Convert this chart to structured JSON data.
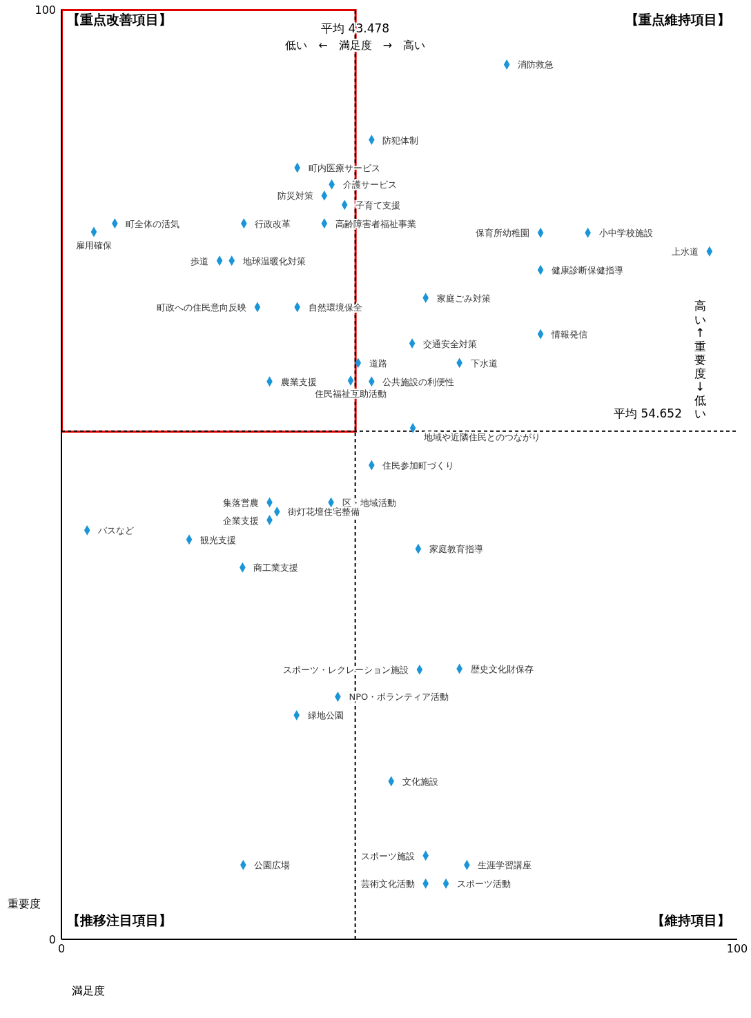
{
  "chart_data": {
    "type": "scatter",
    "xlabel": "満足度",
    "ylabel": "重要度",
    "x": [
      65.9,
      45.9,
      34.9,
      40.0,
      38.9,
      41.9,
      7.9,
      27.0,
      38.9,
      4.8,
      70.9,
      77.9,
      95.9,
      23.4,
      25.2,
      70.9,
      53.9,
      29.0,
      34.9,
      70.9,
      51.9,
      43.9,
      58.9,
      30.8,
      42.8,
      45.9,
      52.0,
      45.9,
      30.8,
      39.9,
      31.9,
      30.8,
      3.8,
      18.9,
      52.8,
      26.8,
      53.0,
      58.9,
      40.9,
      34.8,
      48.8,
      53.9,
      26.9,
      60.0,
      53.9,
      56.9
    ],
    "values": [
      94.1,
      86.0,
      83.0,
      81.2,
      80.0,
      79.0,
      77.0,
      77.0,
      77.0,
      76.1,
      76.0,
      76.0,
      74.0,
      73.0,
      73.0,
      72.0,
      69.0,
      68.0,
      68.0,
      65.1,
      64.1,
      62.0,
      62.0,
      60.0,
      60.1,
      60.0,
      55.0,
      51.0,
      47.0,
      47.0,
      46.0,
      45.1,
      44.0,
      43.0,
      42.0,
      40.0,
      29.0,
      29.1,
      26.1,
      24.1,
      17.0,
      9.0,
      8.0,
      8.0,
      6.0,
      6.0
    ],
    "color": "#1a96d8",
    "marker": "diamond",
    "xlim": [
      0,
      100
    ],
    "ylim": [
      0,
      100
    ],
    "xticks": [
      0,
      100
    ],
    "yticks": [
      0,
      100
    ],
    "ref_lines": [
      {
        "axis": "x",
        "value": 43.478,
        "label": "平均 43.478",
        "color": "#000000",
        "line_style": "dashed"
      },
      {
        "axis": "y",
        "value": 54.652,
        "label": "平均 54.652",
        "color": "#000000",
        "line_style": "dashed"
      }
    ],
    "annotations": [
      "【重点改善項目】",
      "【重点維持項目】",
      "【推移注目項目】",
      "【維持項目】",
      "低い　←　満足度　→　高い",
      "高い ↑ 重要度 ↓ 低い",
      {
        "text": "消防救急",
        "x": 65.9,
        "y": 94.1
      },
      {
        "text": "防犯体制",
        "x": 45.9,
        "y": 86.0
      },
      {
        "text": "町内医療サービス",
        "x": 34.9,
        "y": 83.0
      },
      {
        "text": "介護サービス",
        "x": 40.0,
        "y": 81.2
      },
      {
        "text": "防災対策",
        "x": 38.9,
        "y": 80.0
      },
      {
        "text": "子育て支援",
        "x": 41.9,
        "y": 79.0
      },
      {
        "text": "町全体の活気",
        "x": 7.9,
        "y": 77.0
      },
      {
        "text": "行政改革",
        "x": 27.0,
        "y": 77.0
      },
      {
        "text": "高齢障害者福祉事業",
        "x": 38.9,
        "y": 77.0
      },
      {
        "text": "雇用確保",
        "x": 4.8,
        "y": 76.1
      },
      {
        "text": "保育所幼稚園",
        "x": 70.9,
        "y": 76.0
      },
      {
        "text": "小中学校施設",
        "x": 77.9,
        "y": 76.0
      },
      {
        "text": "上水道",
        "x": 95.9,
        "y": 74.0
      },
      {
        "text": "歩道",
        "x": 23.4,
        "y": 73.0
      },
      {
        "text": "地球温暖化対策",
        "x": 25.2,
        "y": 73.0
      },
      {
        "text": "健康診断保健指導",
        "x": 70.9,
        "y": 72.0
      },
      {
        "text": "家庭ごみ対策",
        "x": 53.9,
        "y": 69.0
      },
      {
        "text": "町政への住民意向反映",
        "x": 29.0,
        "y": 68.0
      },
      {
        "text": "自然環境保全",
        "x": 34.9,
        "y": 68.0
      },
      {
        "text": "情報発信",
        "x": 70.9,
        "y": 65.1
      },
      {
        "text": "交通安全対策",
        "x": 51.9,
        "y": 64.1
      },
      {
        "text": "道路",
        "x": 43.9,
        "y": 62.0
      },
      {
        "text": "下水道",
        "x": 58.9,
        "y": 62.0
      },
      {
        "text": "農業支援",
        "x": 30.8,
        "y": 60.0
      },
      {
        "text": "住民福祉互助活動",
        "x": 42.8,
        "y": 60.1
      },
      {
        "text": "公共施設の利便性",
        "x": 45.9,
        "y": 60.0
      },
      {
        "text": "地域や近隣住民とのつながり",
        "x": 52.0,
        "y": 55.0
      },
      {
        "text": "住民参加町づくり",
        "x": 45.9,
        "y": 51.0
      },
      {
        "text": "集落営農",
        "x": 30.8,
        "y": 47.0
      },
      {
        "text": "区・地域活動",
        "x": 39.9,
        "y": 47.0
      },
      {
        "text": "街灯花壇住宅整備",
        "x": 31.9,
        "y": 46.0
      },
      {
        "text": "企業支援",
        "x": 30.8,
        "y": 45.1
      },
      {
        "text": "バスなど",
        "x": 3.8,
        "y": 44.0
      },
      {
        "text": "観光支援",
        "x": 18.9,
        "y": 43.0
      },
      {
        "text": "家庭教育指導",
        "x": 52.8,
        "y": 42.0
      },
      {
        "text": "商工業支援",
        "x": 26.8,
        "y": 40.0
      },
      {
        "text": "スポーツ・レクレーション施設",
        "x": 53.0,
        "y": 29.0
      },
      {
        "text": "歴史文化財保存",
        "x": 58.9,
        "y": 29.1
      },
      {
        "text": "NPO・ボランティア活動",
        "x": 40.9,
        "y": 26.1
      },
      {
        "text": "緑地公園",
        "x": 34.8,
        "y": 24.1
      },
      {
        "text": "文化施設",
        "x": 48.8,
        "y": 17.0
      },
      {
        "text": "スポーツ施設",
        "x": 53.9,
        "y": 9.0
      },
      {
        "text": "公園広場",
        "x": 26.9,
        "y": 8.0
      },
      {
        "text": "生涯学習講座",
        "x": 60.0,
        "y": 8.0
      },
      {
        "text": "芸術文化活動",
        "x": 53.9,
        "y": 6.0
      },
      {
        "text": "スポーツ活動",
        "x": 56.9,
        "y": 6.0
      }
    ]
  }
}
